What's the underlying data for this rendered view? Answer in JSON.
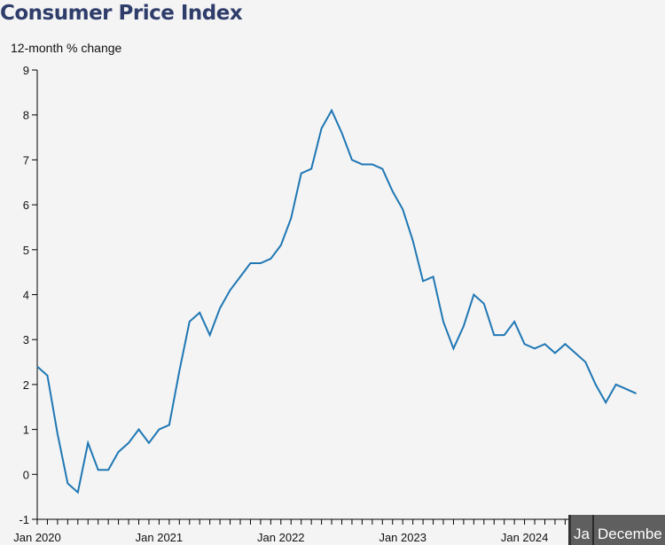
{
  "chart_data": {
    "type": "line",
    "title": "Consumer Price Index",
    "ylabel": "12-month % change",
    "xlabel": "",
    "ylim": [
      -1,
      9
    ],
    "yticks": [
      -1,
      0,
      1,
      2,
      3,
      4,
      5,
      6,
      7,
      8,
      9
    ],
    "xticks": [
      {
        "index": 0,
        "label": "Jan 2020"
      },
      {
        "index": 12,
        "label": "Jan 2021"
      },
      {
        "index": 24,
        "label": "Jan 2022"
      },
      {
        "index": 36,
        "label": "Jan 2023"
      },
      {
        "index": 48,
        "label": "Jan 2024"
      }
    ],
    "x_start": "2020-01",
    "line_color": "#1f77b4",
    "grid": false,
    "series": [
      {
        "values": [
          2.4,
          2.2,
          0.9,
          -0.2,
          -0.4,
          0.7,
          0.1,
          0.1,
          0.5,
          0.7,
          1.0,
          0.7,
          1.0,
          1.1,
          2.3,
          3.4,
          3.6,
          3.1,
          3.7,
          4.1,
          4.4,
          4.7,
          4.7,
          4.8,
          5.1,
          5.7,
          6.7,
          6.8,
          7.7,
          8.1,
          7.6,
          7.0,
          6.9,
          6.9,
          6.8,
          6.3,
          5.9,
          5.2,
          4.3,
          4.4,
          3.4,
          2.8,
          3.3,
          4.0,
          3.8,
          3.1,
          3.1,
          3.4,
          2.9,
          2.8,
          2.9,
          2.7,
          2.9,
          2.7,
          2.5,
          2.0,
          1.6,
          2.0,
          1.9,
          1.8
        ]
      }
    ]
  },
  "tooltip": {
    "year_fragment": "Ja",
    "month_fragment": "Decembe"
  }
}
